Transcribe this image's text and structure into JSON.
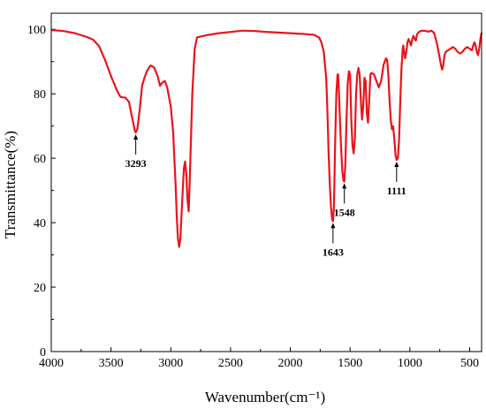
{
  "chart_data": {
    "type": "line",
    "title": "",
    "xlabel": "Wavenumber(cm⁻¹)",
    "ylabel": "Transmittance(%)",
    "xlim": [
      4000,
      400
    ],
    "ylim": [
      0,
      105
    ],
    "x_reversed": true,
    "grid": false,
    "legend": "none",
    "x_ticks": [
      4000,
      3500,
      3000,
      2500,
      2000,
      1500,
      1000,
      500
    ],
    "y_ticks": [
      0,
      20,
      40,
      60,
      80,
      100
    ],
    "series": [
      {
        "color": "#e8141a",
        "points": [
          [
            4000,
            99.8
          ],
          [
            3900,
            99.5
          ],
          [
            3800,
            98.8
          ],
          [
            3700,
            97.6
          ],
          [
            3650,
            96.8
          ],
          [
            3600,
            94.8
          ],
          [
            3550,
            90.5
          ],
          [
            3500,
            85.5
          ],
          [
            3450,
            81
          ],
          [
            3420,
            79
          ],
          [
            3380,
            78.8
          ],
          [
            3350,
            77.5
          ],
          [
            3320,
            72
          ],
          [
            3300,
            68.5
          ],
          [
            3293,
            68
          ],
          [
            3280,
            69
          ],
          [
            3260,
            75
          ],
          [
            3240,
            82.5
          ],
          [
            3220,
            85
          ],
          [
            3200,
            87
          ],
          [
            3170,
            88.8
          ],
          [
            3140,
            88.2
          ],
          [
            3110,
            85.5
          ],
          [
            3090,
            82.5
          ],
          [
            3070,
            83.5
          ],
          [
            3050,
            84
          ],
          [
            3030,
            82
          ],
          [
            3000,
            76
          ],
          [
            2980,
            68
          ],
          [
            2960,
            52
          ],
          [
            2950,
            42
          ],
          [
            2940,
            35
          ],
          [
            2930,
            32.5
          ],
          [
            2920,
            35
          ],
          [
            2900,
            50
          ],
          [
            2890,
            57
          ],
          [
            2880,
            59
          ],
          [
            2870,
            55
          ],
          [
            2860,
            47
          ],
          [
            2850,
            43.5
          ],
          [
            2840,
            55
          ],
          [
            2820,
            80
          ],
          [
            2800,
            94
          ],
          [
            2780,
            97.5
          ],
          [
            2700,
            98.2
          ],
          [
            2600,
            98.8
          ],
          [
            2500,
            99.2
          ],
          [
            2400,
            99.6
          ],
          [
            2300,
            99.5
          ],
          [
            2200,
            99.2
          ],
          [
            2100,
            99
          ],
          [
            2000,
            98.8
          ],
          [
            1900,
            98.6
          ],
          [
            1800,
            98.3
          ],
          [
            1760,
            97.5
          ],
          [
            1740,
            96
          ],
          [
            1720,
            93
          ],
          [
            1700,
            85
          ],
          [
            1690,
            75
          ],
          [
            1680,
            62
          ],
          [
            1670,
            52
          ],
          [
            1660,
            45
          ],
          [
            1650,
            41
          ],
          [
            1643,
            40.5
          ],
          [
            1635,
            45
          ],
          [
            1625,
            65
          ],
          [
            1615,
            80
          ],
          [
            1605,
            86
          ],
          [
            1600,
            86
          ],
          [
            1595,
            82
          ],
          [
            1585,
            72
          ],
          [
            1575,
            63
          ],
          [
            1565,
            56
          ],
          [
            1555,
            53
          ],
          [
            1548,
            52.8
          ],
          [
            1540,
            58
          ],
          [
            1530,
            72
          ],
          [
            1520,
            83
          ],
          [
            1510,
            87
          ],
          [
            1500,
            86
          ],
          [
            1490,
            72
          ],
          [
            1480,
            64
          ],
          [
            1470,
            61.5
          ],
          [
            1460,
            66
          ],
          [
            1450,
            80
          ],
          [
            1440,
            86
          ],
          [
            1430,
            88
          ],
          [
            1420,
            86
          ],
          [
            1410,
            78
          ],
          [
            1400,
            72
          ],
          [
            1390,
            76
          ],
          [
            1380,
            85
          ],
          [
            1370,
            84
          ],
          [
            1360,
            74
          ],
          [
            1350,
            71
          ],
          [
            1340,
            78
          ],
          [
            1330,
            86
          ],
          [
            1320,
            86.5
          ],
          [
            1300,
            86
          ],
          [
            1280,
            84
          ],
          [
            1260,
            82
          ],
          [
            1240,
            84
          ],
          [
            1220,
            89
          ],
          [
            1200,
            91
          ],
          [
            1190,
            90.5
          ],
          [
            1180,
            86
          ],
          [
            1170,
            78
          ],
          [
            1160,
            72
          ],
          [
            1150,
            69
          ],
          [
            1140,
            70
          ],
          [
            1130,
            66
          ],
          [
            1120,
            61
          ],
          [
            1111,
            59.5
          ],
          [
            1100,
            60
          ],
          [
            1090,
            66
          ],
          [
            1080,
            78
          ],
          [
            1070,
            88
          ],
          [
            1060,
            94
          ],
          [
            1055,
            95
          ],
          [
            1050,
            93.5
          ],
          [
            1040,
            91
          ],
          [
            1030,
            93
          ],
          [
            1020,
            96
          ],
          [
            1010,
            97
          ],
          [
            1000,
            96
          ],
          [
            990,
            95
          ],
          [
            980,
            97
          ],
          [
            970,
            98
          ],
          [
            960,
            97
          ],
          [
            950,
            96.5
          ],
          [
            940,
            98.5
          ],
          [
            920,
            99.3
          ],
          [
            900,
            99.6
          ],
          [
            870,
            99.5
          ],
          [
            840,
            99.3
          ],
          [
            820,
            99.6
          ],
          [
            800,
            99
          ],
          [
            790,
            98
          ],
          [
            780,
            96.5
          ],
          [
            770,
            95
          ],
          [
            760,
            93
          ],
          [
            750,
            91
          ],
          [
            740,
            89
          ],
          [
            730,
            87.5
          ],
          [
            720,
            89
          ],
          [
            710,
            92
          ],
          [
            700,
            93
          ],
          [
            680,
            93.5
          ],
          [
            660,
            94
          ],
          [
            640,
            94.5
          ],
          [
            620,
            94
          ],
          [
            600,
            93
          ],
          [
            580,
            92.5
          ],
          [
            560,
            93
          ],
          [
            540,
            94
          ],
          [
            520,
            94.5
          ],
          [
            500,
            94
          ],
          [
            480,
            93.5
          ],
          [
            470,
            95
          ],
          [
            460,
            96
          ],
          [
            450,
            95
          ],
          [
            440,
            93
          ],
          [
            430,
            92
          ],
          [
            420,
            94
          ],
          [
            410,
            97
          ],
          [
            400,
            99
          ]
        ]
      }
    ],
    "annotations": [
      {
        "text": "3293",
        "x": 3293,
        "y": 68,
        "label_pos": "below"
      },
      {
        "text": "1643",
        "x": 1643,
        "y": 40.5,
        "label_pos": "below"
      },
      {
        "text": "1548",
        "x": 1548,
        "y": 52.8,
        "label_pos": "below"
      },
      {
        "text": "1111",
        "x": 1111,
        "y": 59.5,
        "label_pos": "below"
      }
    ]
  }
}
